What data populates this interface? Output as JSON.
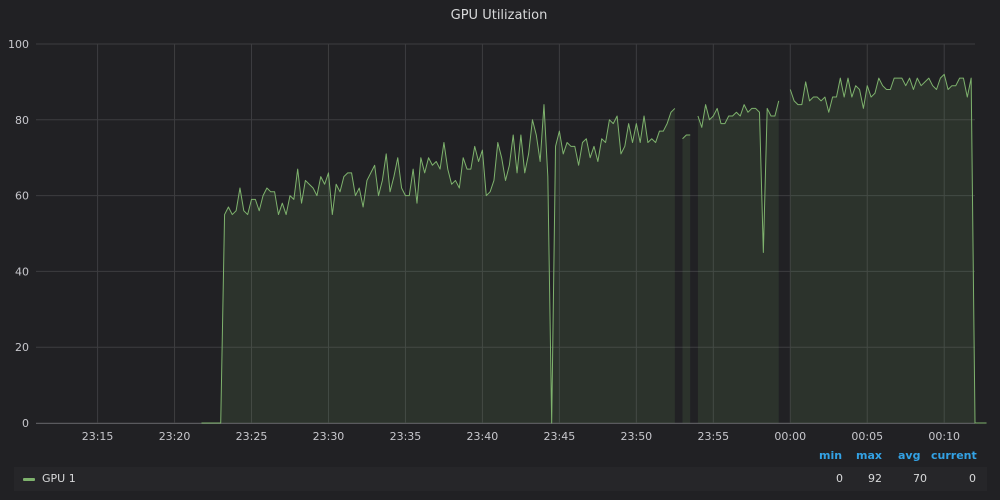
{
  "chart_data": {
    "type": "area",
    "title": "GPU Utilization",
    "xlabel": "",
    "ylabel": "",
    "ylim": [
      0,
      100
    ],
    "xlim": [
      "23:11",
      "00:12"
    ],
    "y_ticks": [
      0,
      20,
      40,
      60,
      80,
      100
    ],
    "x_ticks": [
      "23:15",
      "23:20",
      "23:25",
      "23:30",
      "23:35",
      "23:40",
      "23:45",
      "23:50",
      "23:55",
      "00:00",
      "00:05",
      "00:10"
    ],
    "grid": true,
    "series": [
      {
        "name": "GPU 1",
        "color": "#7eb26d",
        "points": [
          [
            "23:21:45",
            0
          ],
          [
            "23:23:00",
            0
          ],
          [
            "23:23:15",
            55
          ],
          [
            "23:23:30",
            57
          ],
          [
            "23:23:45",
            55
          ],
          [
            "23:24:00",
            56
          ],
          [
            "23:24:15",
            62
          ],
          [
            "23:24:30",
            56
          ],
          [
            "23:24:45",
            55
          ],
          [
            "23:25:00",
            59
          ],
          [
            "23:25:15",
            59
          ],
          [
            "23:25:30",
            56
          ],
          [
            "23:25:45",
            60
          ],
          [
            "23:26:00",
            62
          ],
          [
            "23:26:15",
            61
          ],
          [
            "23:26:30",
            61
          ],
          [
            "23:26:45",
            55
          ],
          [
            "23:27:00",
            58
          ],
          [
            "23:27:15",
            55
          ],
          [
            "23:27:30",
            60
          ],
          [
            "23:27:45",
            59
          ],
          [
            "23:28:00",
            67
          ],
          [
            "23:28:15",
            58
          ],
          [
            "23:28:30",
            64
          ],
          [
            "23:28:45",
            63
          ],
          [
            "23:29:00",
            62
          ],
          [
            "23:29:15",
            60
          ],
          [
            "23:29:30",
            65
          ],
          [
            "23:29:45",
            63
          ],
          [
            "23:30:00",
            66
          ],
          [
            "23:30:15",
            55
          ],
          [
            "23:30:30",
            63
          ],
          [
            "23:30:45",
            61
          ],
          [
            "23:31:00",
            65
          ],
          [
            "23:31:15",
            66
          ],
          [
            "23:31:30",
            66
          ],
          [
            "23:31:45",
            60
          ],
          [
            "23:32:00",
            62
          ],
          [
            "23:32:15",
            57
          ],
          [
            "23:32:30",
            64
          ],
          [
            "23:32:45",
            66
          ],
          [
            "23:33:00",
            68
          ],
          [
            "23:33:15",
            60
          ],
          [
            "23:33:30",
            64
          ],
          [
            "23:33:45",
            71
          ],
          [
            "23:34:00",
            61
          ],
          [
            "23:34:15",
            65
          ],
          [
            "23:34:30",
            70
          ],
          [
            "23:34:45",
            62
          ],
          [
            "23:35:00",
            60
          ],
          [
            "23:35:15",
            60
          ],
          [
            "23:35:30",
            67
          ],
          [
            "23:35:45",
            58
          ],
          [
            "23:36:00",
            70
          ],
          [
            "23:36:15",
            66
          ],
          [
            "23:36:30",
            70
          ],
          [
            "23:36:45",
            68
          ],
          [
            "23:37:00",
            69
          ],
          [
            "23:37:15",
            67
          ],
          [
            "23:37:30",
            74
          ],
          [
            "23:37:45",
            67
          ],
          [
            "23:38:00",
            63
          ],
          [
            "23:38:15",
            64
          ],
          [
            "23:38:30",
            62
          ],
          [
            "23:38:45",
            70
          ],
          [
            "23:39:00",
            67
          ],
          [
            "23:39:15",
            67
          ],
          [
            "23:39:30",
            73
          ],
          [
            "23:39:45",
            69
          ],
          [
            "23:40:00",
            72
          ],
          [
            "23:40:15",
            60
          ],
          [
            "23:40:30",
            61
          ],
          [
            "23:40:45",
            64
          ],
          [
            "23:41:00",
            74
          ],
          [
            "23:41:15",
            70
          ],
          [
            "23:41:30",
            64
          ],
          [
            "23:41:45",
            68
          ],
          [
            "23:42:00",
            76
          ],
          [
            "23:42:15",
            66
          ],
          [
            "23:42:30",
            76
          ],
          [
            "23:42:45",
            66
          ],
          [
            "23:43:00",
            71
          ],
          [
            "23:43:15",
            80
          ],
          [
            "23:43:30",
            76
          ],
          [
            "23:43:45",
            69
          ],
          [
            "23:44:00",
            84
          ],
          [
            "23:44:15",
            65
          ],
          [
            "23:44:30",
            0
          ],
          [
            "23:44:45",
            73
          ],
          [
            "23:45:00",
            77
          ],
          [
            "23:45:15",
            71
          ],
          [
            "23:45:30",
            74
          ],
          [
            "23:45:45",
            73
          ],
          [
            "23:46:00",
            73
          ],
          [
            "23:46:15",
            68
          ],
          [
            "23:46:30",
            74
          ],
          [
            "23:46:45",
            75
          ],
          [
            "23:47:00",
            70
          ],
          [
            "23:47:15",
            73
          ],
          [
            "23:47:30",
            69
          ],
          [
            "23:47:45",
            75
          ],
          [
            "23:48:00",
            74
          ],
          [
            "23:48:15",
            80
          ],
          [
            "23:48:30",
            79
          ],
          [
            "23:48:45",
            81
          ],
          [
            "23:49:00",
            71
          ],
          [
            "23:49:15",
            73
          ],
          [
            "23:49:30",
            79
          ],
          [
            "23:49:45",
            74
          ],
          [
            "23:50:00",
            79
          ],
          [
            "23:50:15",
            74
          ],
          [
            "23:50:30",
            81
          ],
          [
            "23:50:45",
            74
          ],
          [
            "23:51:00",
            75
          ],
          [
            "23:51:15",
            74
          ],
          [
            "23:51:30",
            77
          ],
          [
            "23:51:45",
            77
          ],
          [
            "23:52:00",
            79
          ],
          [
            "23:52:15",
            82
          ],
          [
            "23:52:30",
            83
          ],
          null,
          [
            "23:53:00",
            75
          ],
          [
            "23:53:15",
            76
          ],
          [
            "23:53:30",
            76
          ],
          null,
          [
            "23:54:00",
            81
          ],
          [
            "23:54:15",
            78
          ],
          [
            "23:54:30",
            84
          ],
          [
            "23:54:45",
            80
          ],
          [
            "23:55:00",
            81
          ],
          [
            "23:55:15",
            83
          ],
          [
            "23:55:30",
            79
          ],
          [
            "23:55:45",
            79
          ],
          [
            "23:56:00",
            81
          ],
          [
            "23:56:15",
            81
          ],
          [
            "23:56:30",
            82
          ],
          [
            "23:56:45",
            81
          ],
          [
            "23:57:00",
            84
          ],
          [
            "23:57:15",
            82
          ],
          [
            "23:57:30",
            83
          ],
          [
            "23:57:45",
            83
          ],
          [
            "23:58:00",
            82
          ],
          [
            "23:58:15",
            45
          ],
          [
            "23:58:30",
            83
          ],
          [
            "23:58:45",
            81
          ],
          [
            "23:59:00",
            81
          ],
          [
            "23:59:15",
            85
          ],
          null,
          [
            "00:00:00",
            88
          ],
          [
            "00:00:15",
            85
          ],
          [
            "00:00:30",
            84
          ],
          [
            "00:00:45",
            84
          ],
          [
            "00:01:00",
            90
          ],
          [
            "00:01:15",
            85
          ],
          [
            "00:01:30",
            86
          ],
          [
            "00:01:45",
            86
          ],
          [
            "00:02:00",
            85
          ],
          [
            "00:02:15",
            86
          ],
          [
            "00:02:30",
            82
          ],
          [
            "00:02:45",
            86
          ],
          [
            "00:03:00",
            86
          ],
          [
            "00:03:15",
            91
          ],
          [
            "00:03:30",
            86
          ],
          [
            "00:03:45",
            91
          ],
          [
            "00:04:00",
            86
          ],
          [
            "00:04:15",
            89
          ],
          [
            "00:04:30",
            88
          ],
          [
            "00:04:45",
            83
          ],
          [
            "00:05:00",
            89
          ],
          [
            "00:05:15",
            86
          ],
          [
            "00:05:30",
            87
          ],
          [
            "00:05:45",
            91
          ],
          [
            "00:06:00",
            89
          ],
          [
            "00:06:15",
            88
          ],
          [
            "00:06:30",
            88
          ],
          [
            "00:06:45",
            91
          ],
          [
            "00:07:00",
            91
          ],
          [
            "00:07:15",
            91
          ],
          [
            "00:07:30",
            89
          ],
          [
            "00:07:45",
            91
          ],
          [
            "00:08:00",
            88
          ],
          [
            "00:08:15",
            91
          ],
          [
            "00:08:30",
            89
          ],
          [
            "00:08:45",
            90
          ],
          [
            "00:09:00",
            91
          ],
          [
            "00:09:15",
            89
          ],
          [
            "00:09:30",
            88
          ],
          [
            "00:09:45",
            91
          ],
          [
            "00:10:00",
            92
          ],
          [
            "00:10:15",
            88
          ],
          [
            "00:10:30",
            89
          ],
          [
            "00:10:45",
            89
          ],
          [
            "00:11:00",
            91
          ],
          [
            "00:11:15",
            91
          ],
          [
            "00:11:30",
            86
          ],
          [
            "00:11:45",
            91
          ],
          [
            "00:12:00",
            0
          ],
          [
            "00:12:45",
            0
          ]
        ]
      }
    ]
  },
  "legend": {
    "headers": [
      "min",
      "max",
      "avg",
      "current"
    ],
    "rows": [
      {
        "name": "GPU 1",
        "color": "#7eb26d",
        "min": "0",
        "max": "92",
        "avg": "70",
        "current": "0"
      }
    ]
  }
}
